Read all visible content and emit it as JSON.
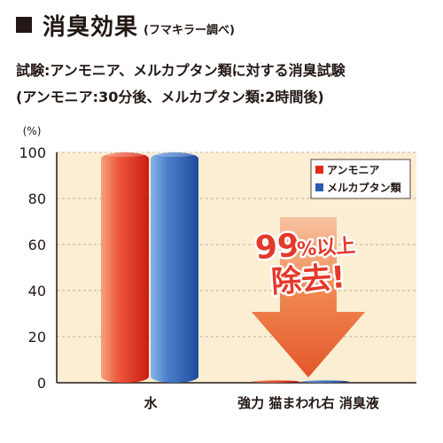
{
  "heading": {
    "title": "消臭効果",
    "source": "(フマキラー調べ)"
  },
  "subtitle_lines": [
    "試験:アンモニア、メルカプタン類に対する消臭試験",
    "(アンモニア:30分後、メルカプタン類:2時間後)"
  ],
  "callout": {
    "line1_number": "99",
    "line1_unit": "%以上",
    "line2": "除去!"
  },
  "colors": {
    "ammonia": "#e02a1b",
    "mercaptan": "#2d5bb0",
    "plot_bg": "#fbeed2",
    "arrow": "#ef6a2c"
  },
  "chart_data": {
    "type": "bar",
    "ylabel": "(%)",
    "ylim": [
      0,
      100
    ],
    "yticks": [
      0,
      20,
      40,
      60,
      80,
      100
    ],
    "grid": true,
    "legend_position": "top-right",
    "categories": [
      "水",
      "強力 猫まわれ右 消臭液"
    ],
    "series": [
      {
        "name": "アンモニア",
        "values": [
          100,
          1
        ]
      },
      {
        "name": "メルカプタン類",
        "values": [
          100,
          1
        ]
      }
    ]
  }
}
